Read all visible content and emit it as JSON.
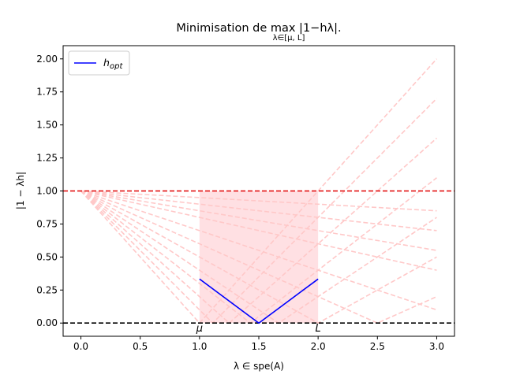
{
  "chart_data": {
    "type": "line",
    "title_main": "Minimisation de  max |1−hλ|.",
    "title_sub": "λ∈[μ, L]",
    "xlabel": "λ ∈ spe(A)",
    "ylabel": "|1 − λh|",
    "xlim": [
      -0.15,
      3.15
    ],
    "ylim": [
      -0.1,
      2.1
    ],
    "xticks": [
      "0.0",
      "0.5",
      "1.0",
      "1.5",
      "2.0",
      "2.5",
      "3.0"
    ],
    "yticks": [
      "0.00",
      "0.25",
      "0.50",
      "0.75",
      "1.00",
      "1.25",
      "1.50",
      "1.75",
      "2.00"
    ],
    "grid": false,
    "legend_position": "top-left",
    "series": [
      {
        "name": "h_opt",
        "legend_label": "hopt",
        "color": "#0000ff",
        "x": [
          1.0,
          1.5,
          2.0
        ],
        "y": [
          0.3333,
          0.0,
          0.3333
        ]
      }
    ],
    "background_curves": {
      "description": "|1 − hλ| for a family of step sizes h",
      "color": "#ffc8c8",
      "h_values": [
        0.05,
        0.1,
        0.15,
        0.2,
        0.3,
        0.4,
        0.5,
        0.6,
        0.7,
        0.8,
        0.9,
        1.0
      ],
      "x_range": [
        0,
        3
      ]
    },
    "shaded_region": {
      "x": [
        1.0,
        2.0
      ],
      "y": [
        0,
        1.0
      ],
      "color": "#ffe0e3"
    },
    "hlines": [
      {
        "y": 1.0,
        "color": "#e00000",
        "style": "dashed"
      },
      {
        "y": 0.0,
        "color": "#000000",
        "style": "dashed"
      }
    ],
    "annotations": [
      {
        "text": "μ",
        "x": 1.0,
        "y": 0.0
      },
      {
        "text": "L",
        "x": 2.0,
        "y": 0.0
      }
    ],
    "legend_main": "h",
    "legend_sub": "opt"
  }
}
